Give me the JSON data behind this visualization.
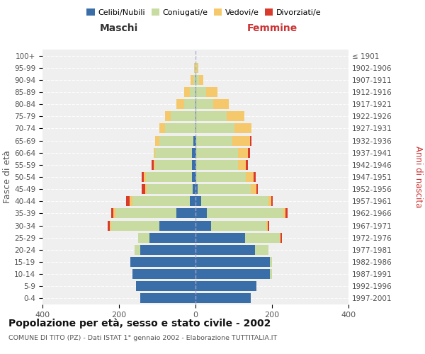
{
  "age_groups": [
    "0-4",
    "5-9",
    "10-14",
    "15-19",
    "20-24",
    "25-29",
    "30-34",
    "35-39",
    "40-44",
    "45-49",
    "50-54",
    "55-59",
    "60-64",
    "65-69",
    "70-74",
    "75-79",
    "80-84",
    "85-89",
    "90-94",
    "95-99",
    "100+"
  ],
  "birth_years": [
    "1997-2001",
    "1992-1996",
    "1987-1991",
    "1982-1986",
    "1977-1981",
    "1972-1976",
    "1967-1971",
    "1962-1966",
    "1957-1961",
    "1952-1956",
    "1947-1951",
    "1942-1946",
    "1937-1941",
    "1932-1936",
    "1927-1931",
    "1922-1926",
    "1917-1921",
    "1912-1916",
    "1907-1911",
    "1902-1906",
    "≤ 1901"
  ],
  "maschi": {
    "celibi": [
      145,
      155,
      165,
      170,
      145,
      120,
      95,
      50,
      15,
      8,
      10,
      10,
      10,
      5,
      0,
      0,
      0,
      0,
      0,
      0,
      0
    ],
    "coniugati": [
      0,
      0,
      0,
      0,
      15,
      30,
      125,
      160,
      150,
      120,
      120,
      95,
      95,
      90,
      80,
      65,
      30,
      15,
      5,
      2,
      0
    ],
    "vedovi": [
      0,
      0,
      0,
      0,
      0,
      0,
      5,
      5,
      8,
      3,
      5,
      5,
      5,
      10,
      15,
      15,
      20,
      15,
      8,
      2,
      0
    ],
    "divorziati": [
      0,
      0,
      0,
      0,
      0,
      0,
      5,
      5,
      8,
      10,
      5,
      5,
      0,
      0,
      0,
      0,
      0,
      0,
      0,
      0,
      0
    ]
  },
  "femmine": {
    "nubili": [
      145,
      160,
      195,
      195,
      155,
      130,
      40,
      30,
      15,
      5,
      2,
      2,
      2,
      2,
      2,
      2,
      2,
      2,
      2,
      0,
      0
    ],
    "coniugate": [
      0,
      0,
      5,
      5,
      35,
      90,
      145,
      200,
      175,
      140,
      130,
      110,
      110,
      95,
      100,
      80,
      45,
      25,
      8,
      3,
      0
    ],
    "vedove": [
      0,
      0,
      0,
      0,
      0,
      3,
      3,
      5,
      8,
      15,
      20,
      20,
      25,
      45,
      45,
      45,
      40,
      30,
      10,
      5,
      0
    ],
    "divorziate": [
      0,
      0,
      0,
      0,
      0,
      3,
      5,
      5,
      3,
      3,
      5,
      5,
      5,
      5,
      0,
      0,
      0,
      0,
      0,
      0,
      0
    ]
  },
  "colors": {
    "celibi_nubili": "#3a6ea8",
    "coniugati": "#c8dba0",
    "vedovi": "#f5c96b",
    "divorziati": "#d93a2b"
  },
  "xlim": 400,
  "title": "Popolazione per età, sesso e stato civile - 2002",
  "subtitle": "COMUNE DI TITO (PZ) - Dati ISTAT 1° gennaio 2002 - Elaborazione TUTTITALIA.IT",
  "ylabel_left": "Fasce di età",
  "ylabel_right": "Anni di nascita",
  "xlabel_left": "Maschi",
  "xlabel_right": "Femmine"
}
